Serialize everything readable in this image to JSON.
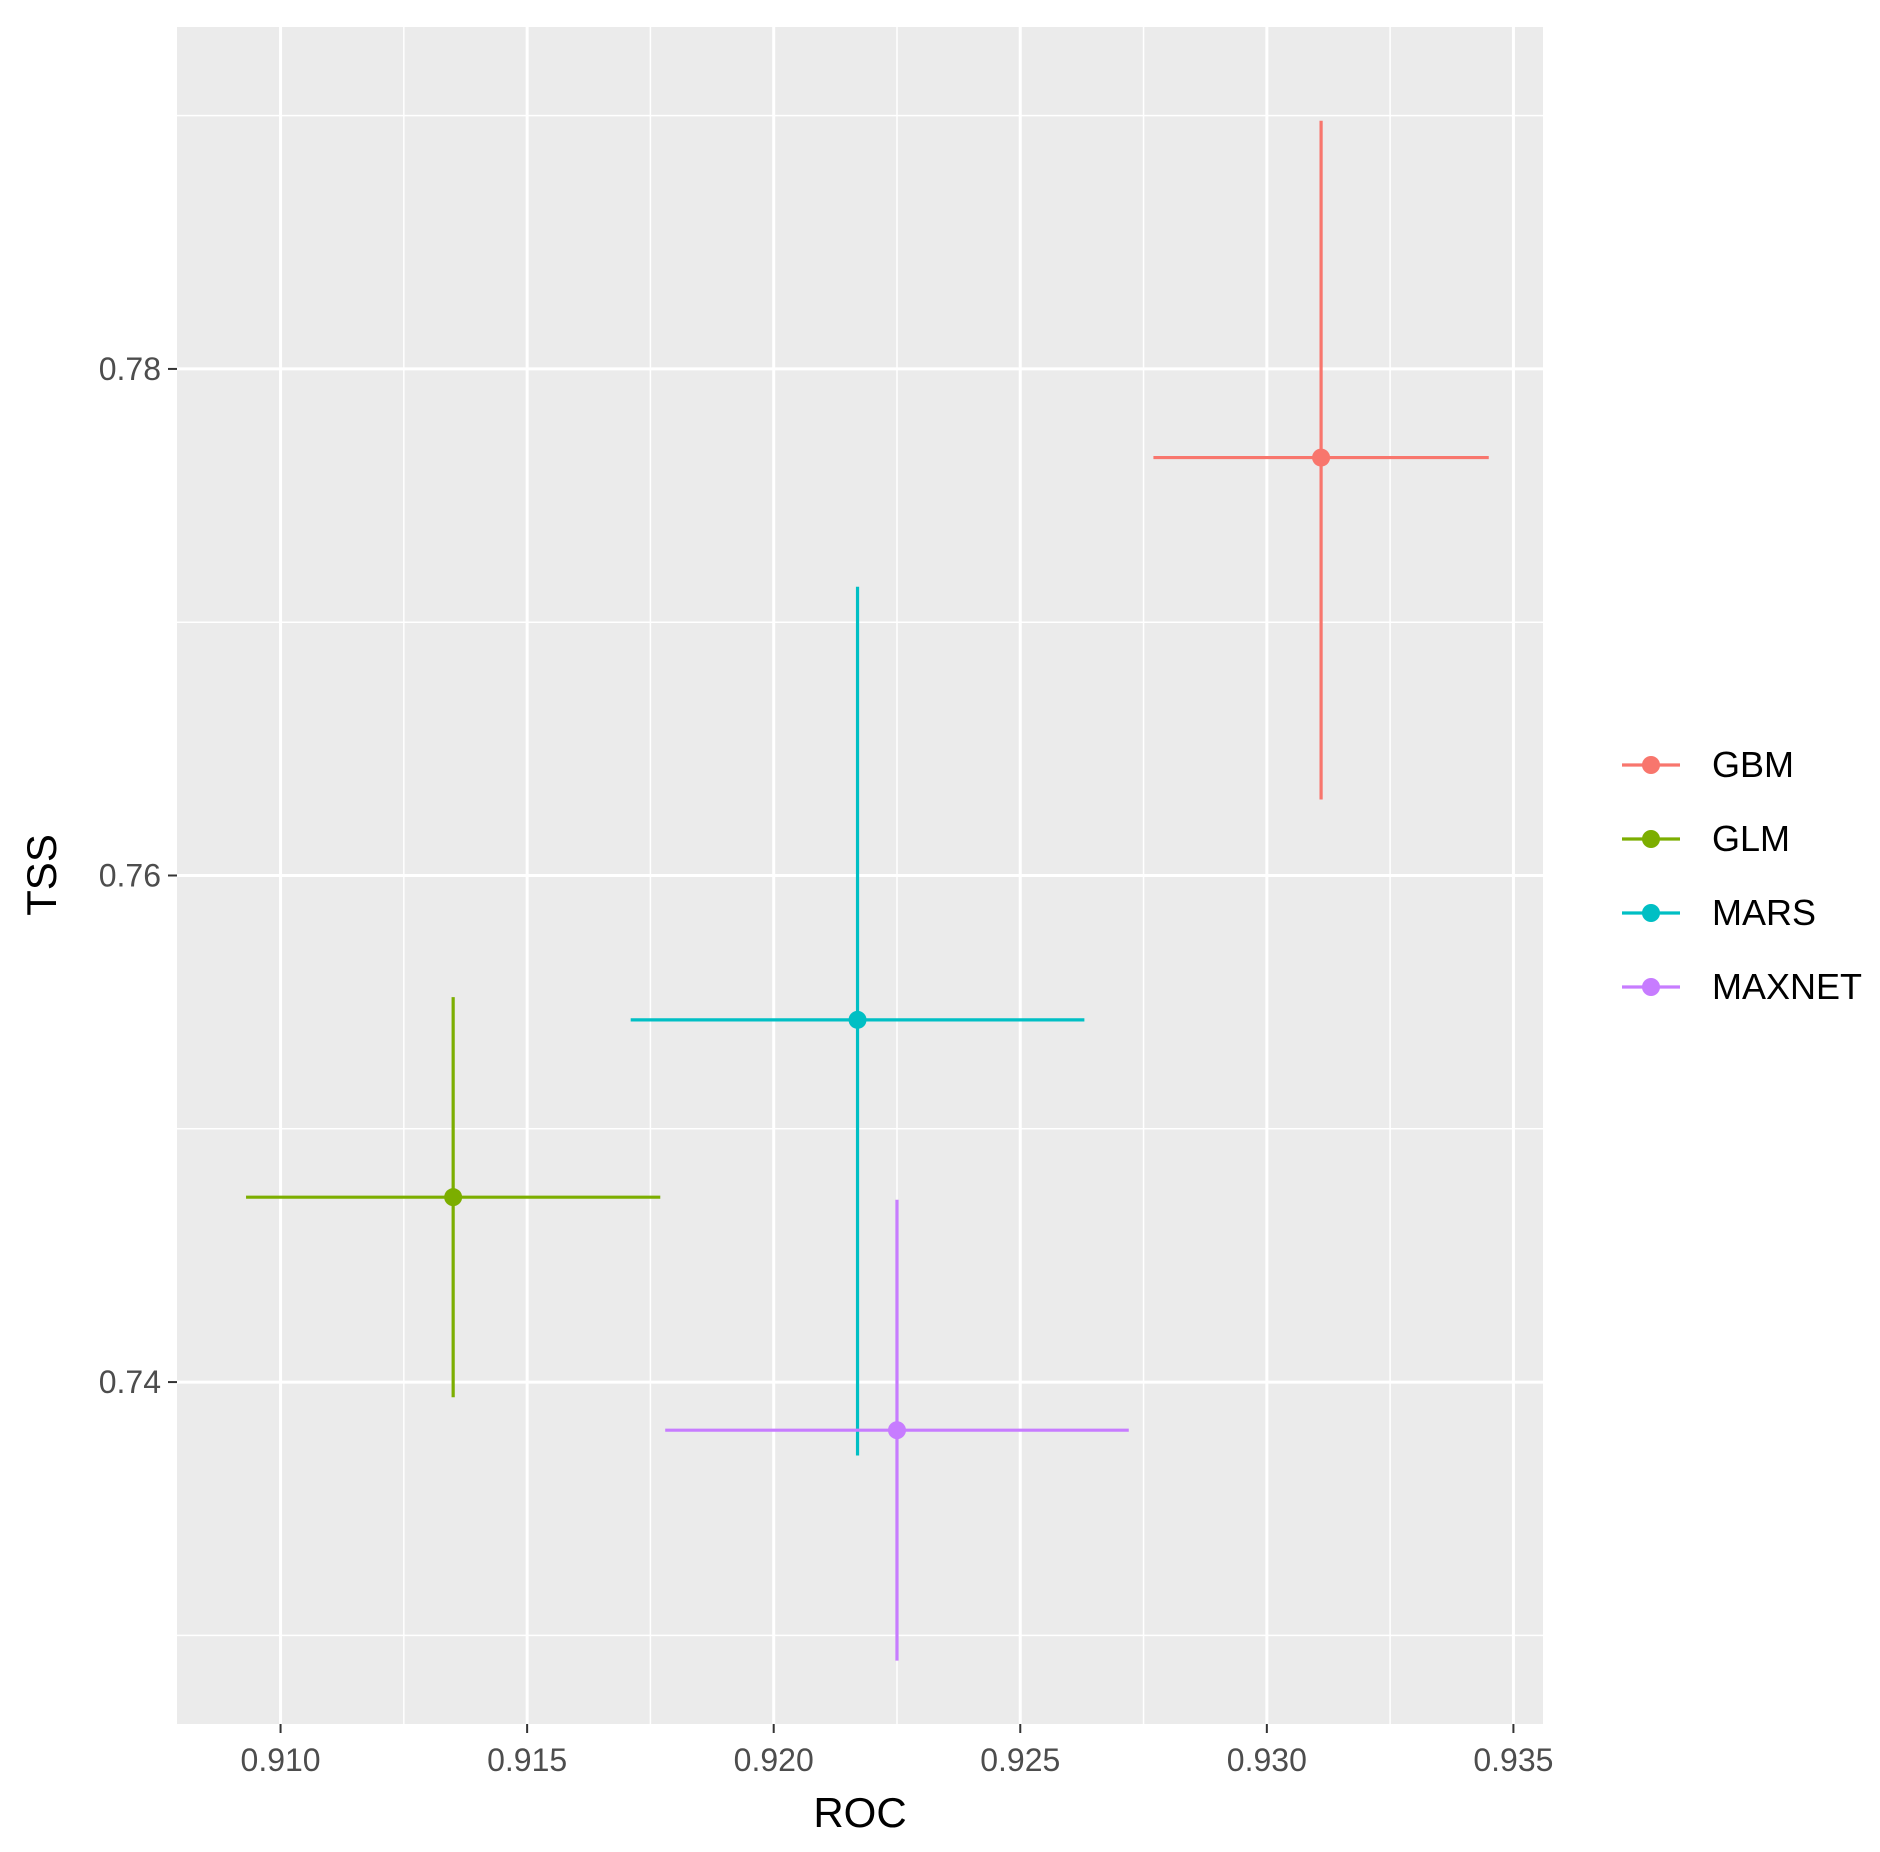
{
  "chart_data": {
    "type": "scatter",
    "xlabel": "ROC",
    "ylabel": "TSS",
    "xlim": [
      0.9079,
      0.9356
    ],
    "ylim": [
      0.7265,
      0.7935
    ],
    "x_ticks": [
      0.91,
      0.915,
      0.92,
      0.925,
      0.93,
      0.935
    ],
    "x_tick_labels": [
      "0.910",
      "0.915",
      "0.920",
      "0.925",
      "0.930",
      "0.935"
    ],
    "y_ticks": [
      0.74,
      0.76,
      0.78
    ],
    "y_tick_labels": [
      "0.74",
      "0.76",
      "0.78"
    ],
    "grid": true,
    "legend_position": "right",
    "series": [
      {
        "name": "GBM",
        "color": "#F8766D",
        "x": 0.9311,
        "y": 0.7765,
        "x_min": 0.9277,
        "x_max": 0.9345,
        "y_min": 0.763,
        "y_max": 0.7898
      },
      {
        "name": "GLM",
        "color": "#7CAE00",
        "x": 0.9135,
        "y": 0.7473,
        "x_min": 0.9093,
        "x_max": 0.9177,
        "y_min": 0.7394,
        "y_max": 0.7552
      },
      {
        "name": "MARS",
        "color": "#00BFC4",
        "x": 0.9217,
        "y": 0.7543,
        "x_min": 0.9171,
        "x_max": 0.9263,
        "y_min": 0.7371,
        "y_max": 0.7714
      },
      {
        "name": "MAXNET",
        "color": "#C77CFF",
        "x": 0.9225,
        "y": 0.7381,
        "x_min": 0.9178,
        "x_max": 0.9272,
        "y_min": 0.729,
        "y_max": 0.7472
      }
    ]
  }
}
